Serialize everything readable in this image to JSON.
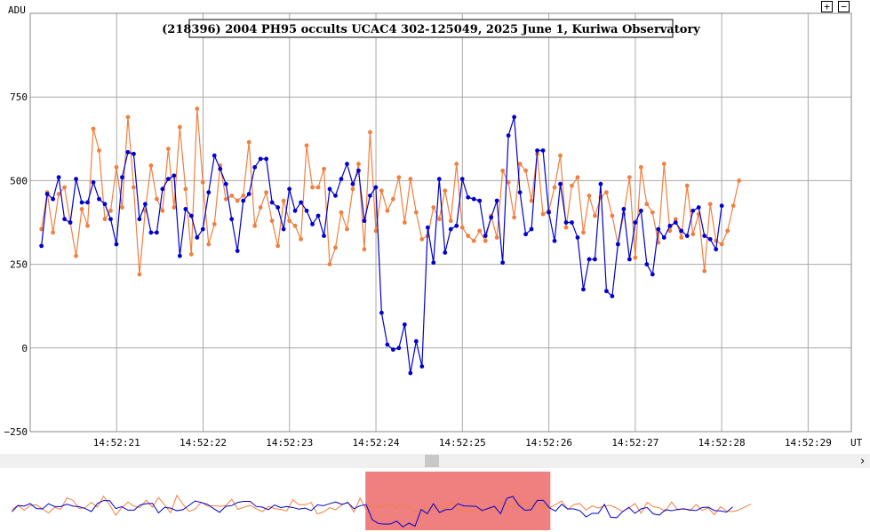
{
  "chart_data": {
    "type": "line",
    "title": "(218396) 2004 PH95 occults UCAC4 302-125049, 2025 June 1, Kuriwa Observatory",
    "ylabel": "ADU",
    "xlabel": "UT",
    "ylim": [
      -250,
      1000
    ],
    "y_ticks": [
      750,
      500,
      250,
      0,
      -250
    ],
    "y_tick_labels": [
      "750",
      "500",
      "250",
      "0",
      "−250"
    ],
    "x_tick_labels": [
      "14:52:21",
      "14:52:22",
      "14:52:23",
      "14:52:24",
      "14:52:25",
      "14:52:26",
      "14:52:27",
      "14:52:28",
      "14:52:29"
    ],
    "x_tick_seconds": [
      21,
      22,
      23,
      24,
      25,
      26,
      27,
      28,
      29
    ],
    "x_start_seconds": 20.13,
    "x_step_seconds": 0.0667,
    "grid": true,
    "colors": {
      "target": "#0000cc",
      "comparison": "#f08040",
      "highlight": "#f08080"
    },
    "series": [
      {
        "color": "#0000cc",
        "values": [
          305,
          460,
          445,
          510,
          385,
          375,
          505,
          435,
          435,
          495,
          445,
          430,
          385,
          310,
          510,
          585,
          580,
          385,
          430,
          345,
          345,
          475,
          505,
          515,
          275,
          415,
          395,
          330,
          355,
          465,
          575,
          535,
          490,
          385,
          290,
          440,
          460,
          540,
          565,
          565,
          435,
          420,
          355,
          475,
          410,
          435,
          410,
          370,
          395,
          335,
          475,
          455,
          505,
          550,
          490,
          530,
          380,
          455,
          480,
          105,
          10,
          -5,
          0,
          70,
          -75,
          20,
          -55,
          360,
          255,
          505,
          285,
          355,
          365,
          505,
          450,
          445,
          440,
          335,
          390,
          440,
          255,
          635,
          690,
          465,
          340,
          355,
          590,
          590,
          405,
          320,
          490,
          375,
          375,
          330,
          175,
          265,
          265,
          490,
          170,
          155,
          310,
          415,
          265,
          375,
          410,
          250,
          220,
          355,
          330,
          365,
          375,
          350,
          335,
          410,
          420,
          335,
          325,
          295,
          425
        ]
      },
      {
        "color": "#f08040",
        "values": [
          355,
          465,
          345,
          460,
          480,
          375,
          275,
          415,
          365,
          655,
          590,
          385,
          410,
          540,
          420,
          690,
          480,
          220,
          410,
          545,
          445,
          410,
          595,
          420,
          660,
          475,
          280,
          715,
          495,
          310,
          370,
          545,
          445,
          455,
          440,
          455,
          615,
          365,
          420,
          465,
          380,
          305,
          440,
          380,
          365,
          325,
          605,
          480,
          480,
          535,
          250,
          300,
          405,
          355,
          475,
          550,
          295,
          645,
          350,
          470,
          410,
          445,
          510,
          375,
          505,
          405,
          325,
          335,
          420,
          385,
          470,
          380,
          550,
          360,
          335,
          320,
          350,
          320,
          395,
          330,
          530,
          495,
          390,
          550,
          530,
          440,
          580,
          400,
          410,
          480,
          575,
          360,
          485,
          510,
          345,
          455,
          395,
          450,
          465,
          395,
          310,
          400,
          510,
          270,
          540,
          430,
          405,
          315,
          550,
          350,
          385,
          330,
          485,
          340,
          400,
          230,
          430,
          320,
          310,
          350,
          425,
          500
        ]
      }
    ]
  },
  "overview": {
    "highlight_start_seconds": 24.0,
    "highlight_end_seconds": 26.0
  },
  "controls": {
    "zoom_in_label": "+",
    "zoom_out_label": "−",
    "scroll_right_label": "›"
  }
}
